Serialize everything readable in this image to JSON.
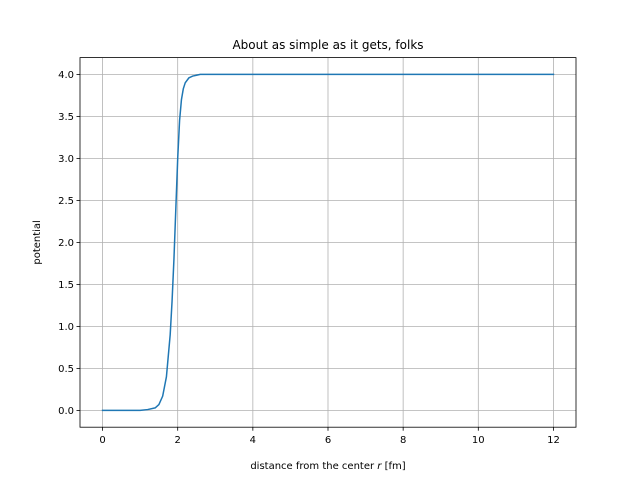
{
  "chart_data": {
    "type": "line",
    "title": "About as simple as it gets, folks",
    "xlabel_prefix": "distance from the center ",
    "xlabel_var": "r",
    "xlabel_suffix": " [fm]",
    "ylabel": "potential",
    "xlim": [
      -0.6,
      12.6
    ],
    "ylim": [
      -0.2,
      4.2
    ],
    "xticks": [
      0,
      2,
      4,
      6,
      8,
      10,
      12
    ],
    "yticks": [
      0.0,
      0.5,
      1.0,
      1.5,
      2.0,
      2.5,
      3.0,
      3.5,
      4.0
    ],
    "xtick_labels": [
      "0",
      "2",
      "4",
      "6",
      "8",
      "10",
      "12"
    ],
    "ytick_labels": [
      "0.0",
      "0.5",
      "1.0",
      "1.5",
      "2.0",
      "2.5",
      "3.0",
      "3.5",
      "4.0"
    ],
    "grid": true,
    "series": [
      {
        "color": "#1f77b4",
        "x": [
          0,
          0.5,
          1.0,
          1.2,
          1.4,
          1.5,
          1.6,
          1.7,
          1.8,
          1.85,
          1.9,
          1.95,
          2.0,
          2.05,
          2.1,
          2.15,
          2.2,
          2.3,
          2.4,
          2.5,
          2.6,
          2.8,
          3.0,
          4.0,
          6.0,
          8.0,
          10.0,
          12.0
        ],
        "y": [
          0.0,
          0.0,
          0.0,
          0.01,
          0.03,
          0.07,
          0.17,
          0.4,
          0.9,
          1.3,
          1.8,
          2.4,
          3.0,
          3.45,
          3.7,
          3.83,
          3.9,
          3.96,
          3.98,
          3.99,
          4.0,
          4.0,
          4.0,
          4.0,
          4.0,
          4.0,
          4.0,
          4.0
        ]
      }
    ]
  }
}
